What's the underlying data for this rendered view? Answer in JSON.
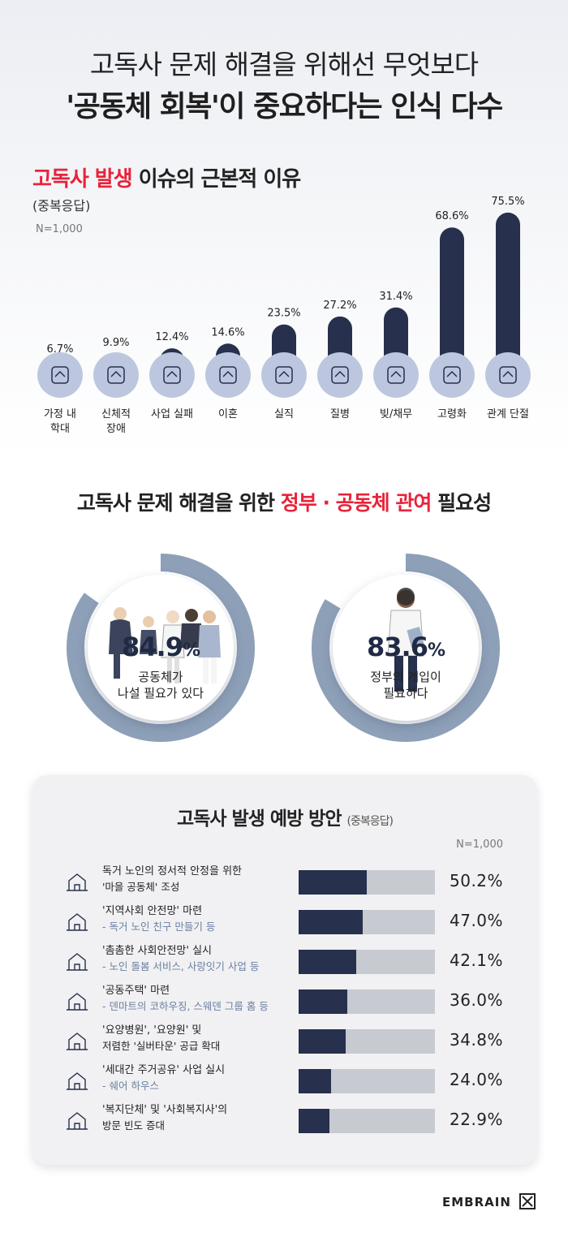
{
  "header": {
    "title_line1": "고독사 문제 해결을 위해선 무엇보다",
    "title_line2": "'공동체 회복'이 중요하다는 인식 다수"
  },
  "section1": {
    "title_accent": "고독사 발생",
    "title_rest": " 이슈의 근본적 이유",
    "subtitle": "(중복응답)",
    "n_label": "N=1,000"
  },
  "section2": {
    "title_pre": "고독사 문제 해결을 위한 ",
    "title_accent": "정부 · 공동체 관여",
    "title_post": " 필요성",
    "donuts": [
      {
        "pct": "84.9",
        "unit": "%",
        "caption1": "공동체가",
        "caption2": "나설 필요가 있다"
      },
      {
        "pct": "83.6",
        "unit": "%",
        "caption1": "정부의 개입이",
        "caption2": "필요하다"
      }
    ]
  },
  "section3": {
    "title": "고독사 발생 예방 방안",
    "title_note": "(중복응답)",
    "n_label": "N=1,000",
    "rows": [
      {
        "icon": "village-icon",
        "line1": "독거 노인의 정서적 안정을 위한",
        "line2": "'마을 공동체' 조성",
        "line2_note": false,
        "label": "50.2%"
      },
      {
        "icon": "elderly-couple-icon",
        "line1": "'지역사회 안전망' 마련",
        "line2": "- 독거 노인 친구 만들기 등",
        "line2_note": true,
        "label": "47.0%"
      },
      {
        "icon": "care-hand-icon",
        "line1": "'촘촘한 사회안전망' 실시",
        "line2": "- 노인 돌봄 서비스, 사랑잇기 사업 등",
        "line2_note": true,
        "label": "42.1%"
      },
      {
        "icon": "cohousing-icon",
        "line1": "'공동주택' 마련",
        "line2": "- 덴마트의 코하우징, 스웨덴 그룹 홈 등",
        "line2_note": true,
        "label": "36.0%"
      },
      {
        "icon": "hospital-icon",
        "line1": "'요양병원', '요양원' 및",
        "line2": "저렴한 '실버타운' 공급 확대",
        "line2_note": false,
        "label": "34.8%"
      },
      {
        "icon": "shared-house-icon",
        "line1": "'세대간 주거공유' 사업 실시",
        "line2": "- 쉐어 하우스",
        "line2_note": true,
        "label": "24.0%"
      },
      {
        "icon": "social-worker-icon",
        "line1": "'복지단체' 및 '사회복지사'의",
        "line2": "방문 빈도 증대",
        "line2_note": false,
        "label": "22.9%"
      }
    ]
  },
  "footer": {
    "brand": "EMBRAIN"
  },
  "colors": {
    "navy": "#27304c",
    "accent_red": "#e8233a",
    "icon_circle": "#bcc7df",
    "ring": "#8da0b8",
    "track": "#c8cad2"
  },
  "chart_data": [
    {
      "type": "bar",
      "title": "고독사 발생 이슈의 근본적 이유",
      "subtitle": "(중복응답)",
      "categories": [
        "가정 내 학대",
        "신체적 장애",
        "사업 실패",
        "이혼",
        "실직",
        "질병",
        "빚/채무",
        "고령화",
        "관계 단절"
      ],
      "category_icons": [
        "abuse-icon",
        "wheelchair-icon",
        "business-failure-icon",
        "broken-heart-icon",
        "unemployment-icon",
        "illness-icon",
        "debt-icon",
        "elderly-icon",
        "isolation-icon"
      ],
      "values": [
        6.7,
        9.9,
        12.4,
        14.6,
        23.5,
        27.2,
        31.4,
        68.6,
        75.5
      ],
      "value_labels": [
        "6.7%",
        "9.9%",
        "12.4%",
        "14.6%",
        "23.5%",
        "27.2%",
        "31.4%",
        "68.6%",
        "75.5%"
      ],
      "ylim": [
        0,
        80
      ],
      "n": "N=1,000"
    },
    {
      "type": "pie",
      "title": "고독사 문제 해결을 위한 정부 · 공동체 관여 필요성",
      "slices": [
        {
          "label": "공동체가 나설 필요가 있다",
          "value": 84.9
        },
        {
          "label": "정부의 개입이 필요하다",
          "value": 83.6
        }
      ]
    },
    {
      "type": "bar",
      "orientation": "horizontal",
      "title": "고독사 발생 예방 방안",
      "categories": [
        "마을 공동체 조성",
        "지역사회 안전망 마련",
        "촘촘한 사회안전망 실시",
        "공동주택 마련",
        "요양병원·요양원·실버타운 공급 확대",
        "세대간 주거공유 사업 실시",
        "복지단체·사회복지사 방문 빈도 증대"
      ],
      "values": [
        50.2,
        47.0,
        42.1,
        36.0,
        34.8,
        24.0,
        22.9
      ],
      "xlim": [
        0,
        100
      ]
    }
  ]
}
